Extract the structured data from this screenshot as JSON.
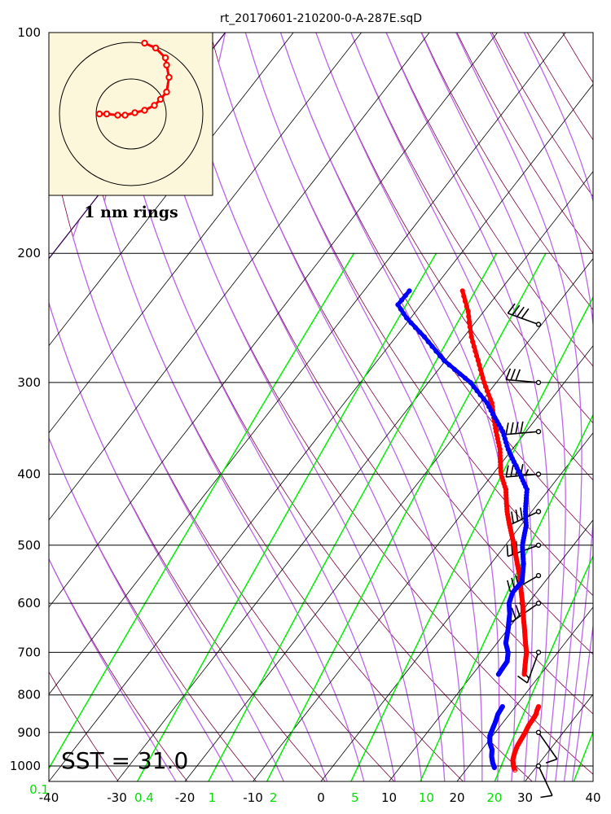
{
  "title": "rt_20170601-210200-0-A-287E.sqD",
  "sst_label": "SST = 31.0",
  "hodograph": {
    "ring_label": "1 nm rings",
    "background": "#fcf6da",
    "track_color": "#ff0000",
    "track": [
      [
        -1.3,
        0.0
      ],
      [
        -1.0,
        0.0
      ],
      [
        -0.55,
        -0.05
      ],
      [
        -0.25,
        -0.05
      ],
      [
        0.15,
        0.05
      ],
      [
        0.55,
        0.15
      ],
      [
        0.95,
        0.35
      ],
      [
        1.2,
        0.6
      ],
      [
        1.45,
        0.9
      ],
      [
        1.55,
        1.5
      ],
      [
        1.45,
        2.0
      ],
      [
        1.4,
        2.3
      ],
      [
        1.0,
        2.7
      ],
      [
        0.55,
        2.9
      ]
    ]
  },
  "colors": {
    "temperature": "#ff0000",
    "dewpoint": "#0000ff",
    "dry_adiabat": "#800040",
    "moist_adiabat": "#bb66ee",
    "mixing_ratio": "#00ee00",
    "isotherm": "#000000",
    "barb": "#000000"
  },
  "chart_data": {
    "type": "line",
    "title": "rt_20170601-210200-0-A-287E.sqD",
    "xlabel": "",
    "ylabel": "",
    "x_range": [
      -40,
      40
    ],
    "p_range": [
      1050,
      100
    ],
    "log_y": true,
    "pressure_ticks": [
      100,
      200,
      300,
      400,
      500,
      600,
      700,
      800,
      900,
      1000
    ],
    "pressure_tick_labels": [
      "100",
      "200",
      "300",
      "400",
      "500",
      "600",
      "700",
      "800",
      "900",
      "1000"
    ],
    "temperature_ticks": [
      -40,
      -30,
      -20,
      -10,
      0,
      10,
      20,
      30,
      40
    ],
    "temperature_tick_labels": [
      "-40",
      "-30",
      "-20",
      "-10",
      "0",
      "10",
      "20",
      "30",
      "40"
    ],
    "mixing_ratio_labels": [
      {
        "t": -40,
        "label": "0.1"
      },
      {
        "t": -26,
        "label": "0.4"
      },
      {
        "t": -16,
        "label": "1"
      },
      {
        "t": -7,
        "label": "2"
      },
      {
        "t": 5,
        "label": "5"
      },
      {
        "t": 15.5,
        "label": "10"
      },
      {
        "t": 25.5,
        "label": "20"
      }
    ],
    "series": [
      {
        "name": "Temperature",
        "points": [
          [
            1013,
            27.2
          ],
          [
            1000,
            26.5
          ],
          [
            980,
            25.7
          ],
          [
            960,
            25.2
          ],
          [
            940,
            24.8
          ],
          [
            920,
            24.6
          ],
          [
            900,
            24.4
          ],
          [
            880,
            24.1
          ],
          [
            860,
            24.0
          ],
          [
            850,
            23.9
          ],
          [
            840,
            23.6
          ],
          [
            830,
            23.4
          ],
          [
            750,
            17.6
          ],
          [
            700,
            15.4
          ],
          [
            650,
            12.4
          ],
          [
            600,
            9.2
          ],
          [
            550,
            5.6
          ],
          [
            500,
            1.3
          ],
          [
            450,
            -3.6
          ],
          [
            420,
            -6.3
          ],
          [
            400,
            -8.8
          ],
          [
            370,
            -11.8
          ],
          [
            350,
            -14.4
          ],
          [
            320,
            -18.3
          ],
          [
            300,
            -21.8
          ],
          [
            280,
            -25.2
          ],
          [
            260,
            -28.9
          ],
          [
            240,
            -32.3
          ],
          [
            225,
            -35.5
          ]
        ]
      },
      {
        "name": "Dewpoint",
        "points": [
          [
            1005,
            23.9
          ],
          [
            990,
            23.1
          ],
          [
            970,
            22.2
          ],
          [
            950,
            21.5
          ],
          [
            930,
            20.4
          ],
          [
            910,
            19.6
          ],
          [
            890,
            19.2
          ],
          [
            870,
            18.8
          ],
          [
            850,
            18.3
          ],
          [
            830,
            18.1
          ],
          [
            750,
            13.8
          ],
          [
            720,
            13.6
          ],
          [
            700,
            12.7
          ],
          [
            680,
            11.3
          ],
          [
            650,
            10.0
          ],
          [
            620,
            8.5
          ],
          [
            600,
            7.2
          ],
          [
            580,
            6.5
          ],
          [
            560,
            6.6
          ],
          [
            530,
            4.8
          ],
          [
            500,
            2.5
          ],
          [
            470,
            0.8
          ],
          [
            450,
            -0.9
          ],
          [
            420,
            -3.2
          ],
          [
            400,
            -6.0
          ],
          [
            370,
            -10.6
          ],
          [
            350,
            -13.4
          ],
          [
            320,
            -19.0
          ],
          [
            300,
            -23.8
          ],
          [
            280,
            -30.2
          ],
          [
            260,
            -35.8
          ],
          [
            245,
            -40.6
          ],
          [
            235,
            -43.4
          ],
          [
            225,
            -43.3
          ]
        ]
      }
    ],
    "wind_barbs": [
      {
        "p": 1000,
        "dir": 155,
        "speed_kt": 10
      },
      {
        "p": 900,
        "dir": 145,
        "speed_kt": 10
      },
      {
        "p": 700,
        "dir": 200,
        "speed_kt": 15
      },
      {
        "p": 600,
        "dir": 235,
        "speed_kt": 40
      },
      {
        "p": 550,
        "dir": 240,
        "speed_kt": 35
      },
      {
        "p": 500,
        "dir": 250,
        "speed_kt": 35
      },
      {
        "p": 450,
        "dir": 245,
        "speed_kt": 45
      },
      {
        "p": 400,
        "dir": 265,
        "speed_kt": 45
      },
      {
        "p": 350,
        "dir": 265,
        "speed_kt": 40
      },
      {
        "p": 300,
        "dir": 275,
        "speed_kt": 30
      },
      {
        "p": 250,
        "dir": 290,
        "speed_kt": 40
      }
    ]
  }
}
